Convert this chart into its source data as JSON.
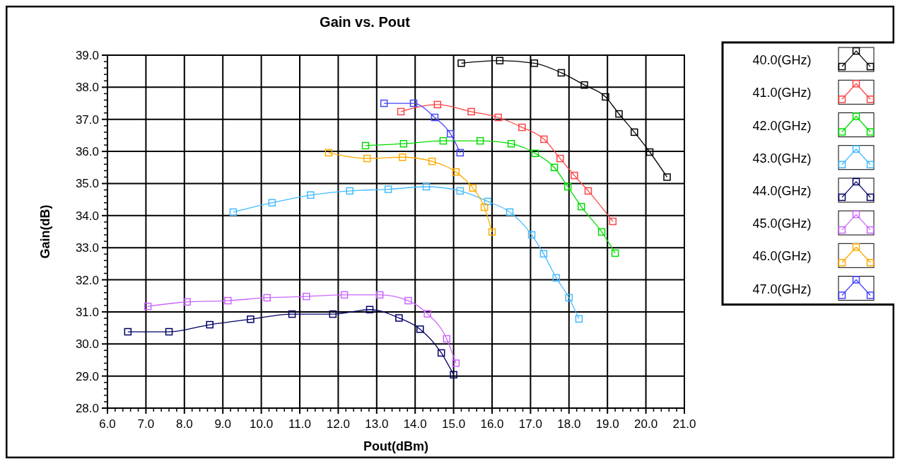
{
  "chart_data": {
    "type": "line",
    "title": "Gain vs. Pout",
    "xlabel": "Pout(dBm)",
    "ylabel": "Gain(dB)",
    "xlim": [
      6,
      21
    ],
    "xticks": [
      {
        "value": 6,
        "label": "6.0"
      },
      {
        "value": 7,
        "label": "7.0"
      },
      {
        "value": 8,
        "label": "8.0"
      },
      {
        "value": 9,
        "label": "9.0"
      },
      {
        "value": 10,
        "label": "10.0"
      },
      {
        "value": 11,
        "label": "11.0"
      },
      {
        "value": 12,
        "label": "12.0"
      },
      {
        "value": 13,
        "label": "13.0"
      },
      {
        "value": 14,
        "label": "14.0"
      },
      {
        "value": 15,
        "label": "15.0"
      },
      {
        "value": 16,
        "label": "16.0"
      },
      {
        "value": 17,
        "label": "17.0"
      },
      {
        "value": 18,
        "label": "18.0"
      },
      {
        "value": 19,
        "label": "19.0"
      },
      {
        "value": 20,
        "label": "20.0"
      },
      {
        "value": 21,
        "label": "21.0"
      }
    ],
    "ylim": [
      28,
      39
    ],
    "yticks": [
      {
        "value": 28,
        "label": "28.0"
      },
      {
        "value": 29,
        "label": "29.0"
      },
      {
        "value": 30,
        "label": "30.0"
      },
      {
        "value": 31,
        "label": "31.0"
      },
      {
        "value": 32,
        "label": "32.0"
      },
      {
        "value": 33,
        "label": "33.0"
      },
      {
        "value": 34,
        "label": "34.0"
      },
      {
        "value": 35,
        "label": "35.0"
      },
      {
        "value": 36,
        "label": "36.0"
      },
      {
        "value": 37,
        "label": "37.0"
      },
      {
        "value": 38,
        "label": "38.0"
      },
      {
        "value": 39,
        "label": "39.0"
      }
    ],
    "grid": true,
    "legend": "right",
    "marker": "square",
    "line_style": "solid",
    "series": [
      {
        "name": "40.0(GHz)",
        "color": "#000000",
        "x": [
          15.2,
          16.2,
          17.1,
          17.8,
          18.4,
          18.95,
          19.3,
          19.7,
          20.1,
          20.55
        ],
        "values": [
          38.75,
          38.83,
          38.75,
          38.45,
          38.07,
          37.7,
          37.17,
          36.6,
          35.98,
          35.2
        ]
      },
      {
        "name": "41.0(GHz)",
        "color": "#ff4444",
        "x": [
          13.63,
          14.58,
          15.46,
          16.16,
          16.78,
          17.35,
          17.77,
          18.14,
          18.5,
          19.14
        ],
        "values": [
          37.24,
          37.46,
          37.24,
          37.06,
          36.75,
          36.38,
          35.78,
          35.25,
          34.77,
          33.82
        ]
      },
      {
        "name": "42.0(GHz)",
        "color": "#00dd00",
        "x": [
          12.71,
          13.7,
          14.73,
          15.69,
          16.5,
          17.12,
          17.62,
          17.97,
          18.32,
          18.85,
          19.2
        ],
        "values": [
          36.18,
          36.24,
          36.33,
          36.33,
          36.24,
          35.94,
          35.5,
          34.9,
          34.28,
          33.49,
          32.83
        ]
      },
      {
        "name": "43.0(GHz)",
        "color": "#44bbff",
        "x": [
          9.27,
          10.28,
          11.28,
          12.3,
          13.3,
          14.29,
          15.17,
          15.89,
          16.46,
          17.03,
          17.34,
          17.67,
          18.0,
          18.26
        ],
        "values": [
          34.11,
          34.4,
          34.64,
          34.77,
          34.82,
          34.9,
          34.77,
          34.44,
          34.11,
          33.4,
          32.81,
          32.06,
          31.44,
          30.78
        ]
      },
      {
        "name": "44.0(GHz)",
        "color": "#000066",
        "x": [
          6.53,
          7.6,
          8.66,
          9.72,
          10.8,
          11.86,
          12.82,
          13.58,
          14.13,
          14.68,
          15.0
        ],
        "values": [
          30.38,
          30.38,
          30.6,
          30.77,
          30.93,
          30.93,
          31.07,
          30.81,
          30.46,
          29.72,
          29.04
        ]
      },
      {
        "name": "45.0(GHz)",
        "color": "#cc66ff",
        "x": [
          7.05,
          8.07,
          9.13,
          10.15,
          11.17,
          12.16,
          13.08,
          13.82,
          14.32,
          14.82,
          15.06
        ],
        "values": [
          31.17,
          31.31,
          31.35,
          31.44,
          31.48,
          31.53,
          31.53,
          31.35,
          30.94,
          30.16,
          29.4
        ]
      },
      {
        "name": "46.0(GHz)",
        "color": "#ffaa00",
        "x": [
          11.75,
          12.75,
          13.67,
          14.44,
          15.06,
          15.5,
          15.8,
          16.0
        ],
        "values": [
          35.96,
          35.78,
          35.82,
          35.69,
          35.36,
          34.86,
          34.26,
          33.49
        ]
      },
      {
        "name": "47.0(GHz)",
        "color": "#4444ff",
        "x": [
          13.19,
          13.96,
          14.51,
          14.92,
          15.17
        ],
        "values": [
          37.5,
          37.5,
          37.06,
          36.55,
          35.96
        ]
      }
    ]
  }
}
